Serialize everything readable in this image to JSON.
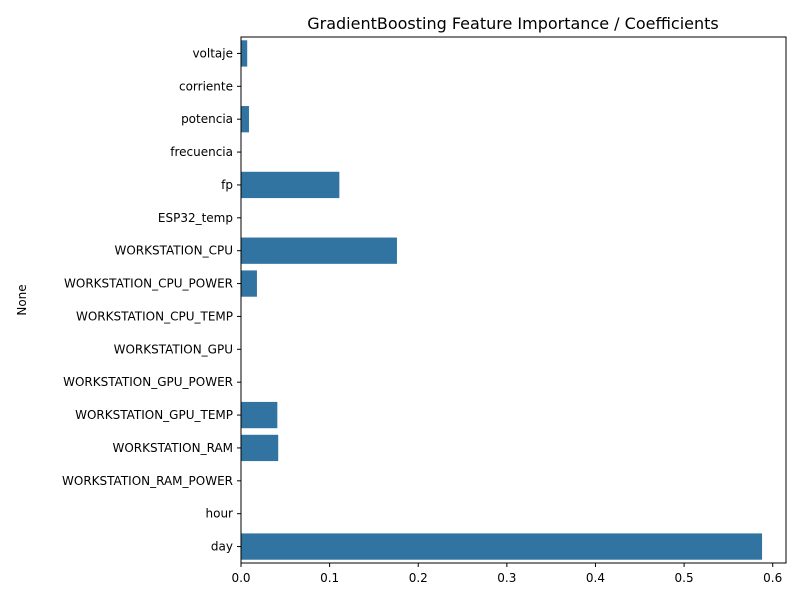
{
  "chart_data": {
    "type": "bar",
    "orientation": "horizontal",
    "title": "GradientBoosting Feature Importance / Coefficients",
    "xlabel": "",
    "ylabel": "None",
    "categories": [
      "voltaje",
      "corriente",
      "potencia",
      "frecuencia",
      "fp",
      "ESP32_temp",
      "WORKSTATION_CPU",
      "WORKSTATION_CPU_POWER",
      "WORKSTATION_CPU_TEMP",
      "WORKSTATION_GPU",
      "WORKSTATION_GPU_POWER",
      "WORKSTATION_GPU_TEMP",
      "WORKSTATION_RAM",
      "WORKSTATION_RAM_POWER",
      "hour",
      "day"
    ],
    "values": [
      0.007,
      0.0,
      0.009,
      0.0,
      0.111,
      0.0,
      0.176,
      0.018,
      0.0,
      0.0,
      0.0,
      0.041,
      0.042,
      0.0,
      0.0,
      0.588
    ],
    "xlim": [
      0,
      0.615
    ],
    "xticks": [
      0.0,
      0.1,
      0.2,
      0.3,
      0.4,
      0.5,
      0.6
    ],
    "xtick_labels": [
      "0.0",
      "0.1",
      "0.2",
      "0.3",
      "0.4",
      "0.5",
      "0.6"
    ],
    "bar_color": "#3274a1",
    "grid": false,
    "legend": "none"
  }
}
